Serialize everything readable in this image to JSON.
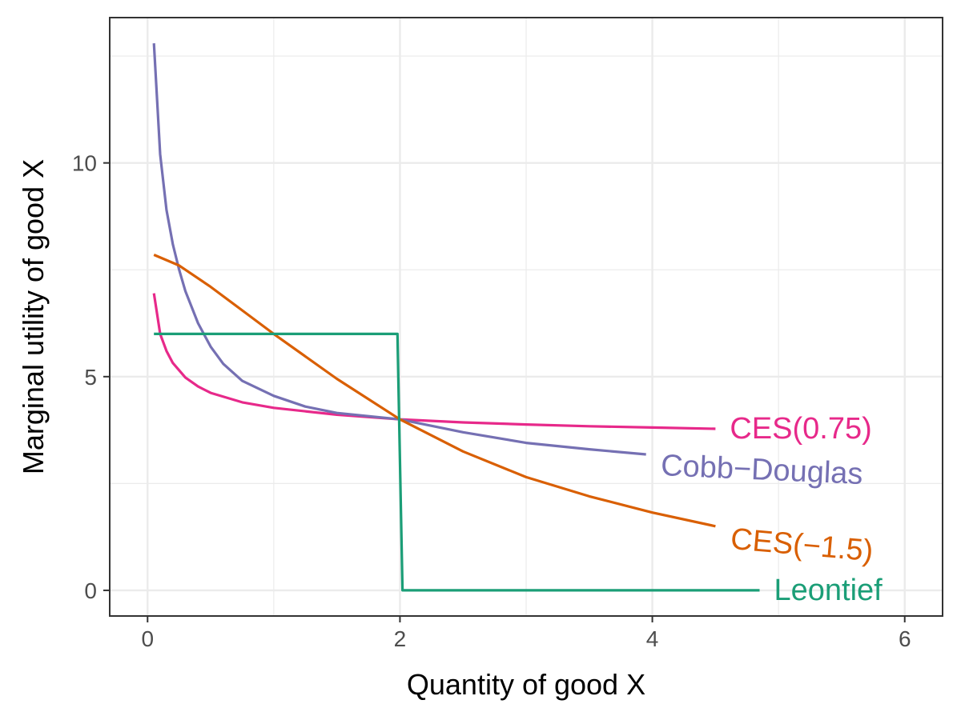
{
  "chart_data": {
    "type": "line",
    "title": "",
    "xlabel": "Quantity of good X",
    "ylabel": "Marginal utility of good X",
    "xlim": [
      -0.3,
      6.3
    ],
    "ylim": [
      -0.6,
      13.4
    ],
    "x_ticks": [
      0,
      2,
      4,
      6
    ],
    "x_tick_labels": [
      "0",
      "2",
      "4",
      "6"
    ],
    "y_ticks": [
      0,
      5,
      10
    ],
    "y_tick_labels": [
      "0",
      "5",
      "10"
    ],
    "grid": true,
    "legend": "none (series labelled directly at line ends)",
    "series": [
      {
        "name": "CES(0.75)",
        "color": "#e7298a",
        "points": [
          [
            0.05,
            6.95
          ],
          [
            0.1,
            6.0
          ],
          [
            0.15,
            5.6
          ],
          [
            0.2,
            5.32
          ],
          [
            0.3,
            4.98
          ],
          [
            0.4,
            4.77
          ],
          [
            0.5,
            4.62
          ],
          [
            0.75,
            4.4
          ],
          [
            1.0,
            4.27
          ],
          [
            1.5,
            4.11
          ],
          [
            2.0,
            4.0
          ],
          [
            2.5,
            3.93
          ],
          [
            3.0,
            3.88
          ],
          [
            3.5,
            3.84
          ],
          [
            4.0,
            3.81
          ],
          [
            4.5,
            3.78
          ]
        ]
      },
      {
        "name": "Cobb−Douglas",
        "color": "#7570b3",
        "points": [
          [
            0.05,
            12.8
          ],
          [
            0.1,
            10.2
          ],
          [
            0.15,
            8.9
          ],
          [
            0.2,
            8.1
          ],
          [
            0.25,
            7.5
          ],
          [
            0.3,
            7.0
          ],
          [
            0.4,
            6.25
          ],
          [
            0.5,
            5.7
          ],
          [
            0.6,
            5.3
          ],
          [
            0.75,
            4.9
          ],
          [
            1.0,
            4.55
          ],
          [
            1.25,
            4.3
          ],
          [
            1.5,
            4.15
          ],
          [
            2.0,
            4.0
          ],
          [
            2.5,
            3.7
          ],
          [
            3.0,
            3.45
          ],
          [
            3.5,
            3.3
          ],
          [
            3.95,
            3.18
          ]
        ]
      },
      {
        "name": "CES(−1.5)",
        "color": "#d95f02",
        "points": [
          [
            0.05,
            7.85
          ],
          [
            0.25,
            7.6
          ],
          [
            0.5,
            7.1
          ],
          [
            0.75,
            6.55
          ],
          [
            1.0,
            6.0
          ],
          [
            1.5,
            4.95
          ],
          [
            2.0,
            4.0
          ],
          [
            2.5,
            3.25
          ],
          [
            3.0,
            2.65
          ],
          [
            3.5,
            2.2
          ],
          [
            4.0,
            1.82
          ],
          [
            4.5,
            1.5
          ]
        ]
      },
      {
        "name": "Leontief",
        "color": "#1b9e77",
        "points": [
          [
            0.05,
            6.0
          ],
          [
            1.98,
            6.0
          ],
          [
            2.02,
            0.0
          ],
          [
            4.85,
            0.0
          ]
        ]
      }
    ]
  }
}
